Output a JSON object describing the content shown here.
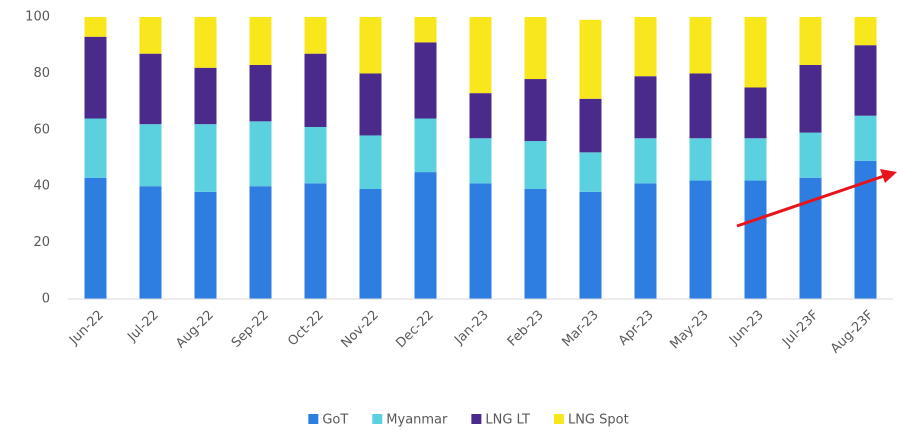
{
  "chart_data": {
    "type": "stacked_bar",
    "categories": [
      "Jun-22",
      "Jul-22",
      "Aug-22",
      "Sep-22",
      "Oct-22",
      "Nov-22",
      "Dec-22",
      "Jan-23",
      "Feb-23",
      "Mar-23",
      "Apr-23",
      "May-23",
      "Jun-23",
      "Jul-23F",
      "Aug-23F"
    ],
    "series": [
      {
        "name": "GoT",
        "color": "#2e7de1",
        "values": [
          43,
          40,
          38,
          40,
          41,
          39,
          45,
          41,
          39,
          38,
          41,
          42,
          42,
          43,
          49
        ]
      },
      {
        "name": "Myanmar",
        "color": "#5bd1e0",
        "values": [
          21,
          22,
          24,
          23,
          20,
          19,
          19,
          16,
          17,
          14,
          16,
          15,
          15,
          16,
          16
        ]
      },
      {
        "name": "LNG LT",
        "color": "#4a2a8a",
        "values": [
          29,
          25,
          20,
          20,
          26,
          22,
          27,
          16,
          22,
          19,
          22,
          23,
          18,
          24,
          25
        ]
      },
      {
        "name": "LNG Spot",
        "color": "#f8e71c",
        "values": [
          7,
          13,
          18,
          17,
          13,
          20,
          9,
          27,
          22,
          28,
          21,
          20,
          25,
          17,
          10
        ]
      }
    ],
    "ylim": [
      0,
      100
    ],
    "yticks": [
      0,
      20,
      40,
      60,
      80,
      100
    ],
    "grid": false
  }
}
